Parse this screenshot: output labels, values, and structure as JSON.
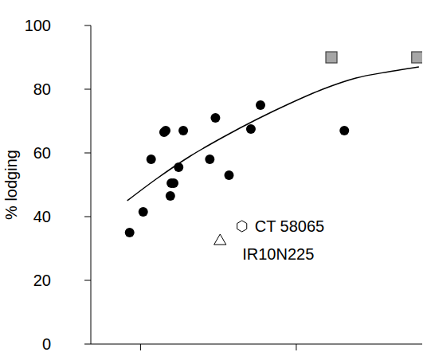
{
  "chart_data": {
    "type": "scatter",
    "y_label": "% lodging",
    "xlim": [
      0,
      100
    ],
    "xticks": [
      15,
      62
    ],
    "ylim": [
      0,
      100
    ],
    "yticks": [
      0,
      20,
      40,
      60,
      80,
      100
    ],
    "tick_labels": "y",
    "series": [
      {
        "type": "line",
        "line_style": "solid",
        "color": "#000000",
        "x": [
          11,
          20,
          30,
          40,
          50,
          60,
          70,
          80,
          90,
          99
        ],
        "values": [
          45,
          52,
          59,
          65,
          70.5,
          75.5,
          80,
          83.5,
          85.5,
          87
        ]
      },
      {
        "type": "scatter",
        "marker": "circle",
        "color": "#000000",
        "x": [
          11.7,
          15.8,
          18.2,
          22.1,
          22.6,
          24.3,
          25,
          24,
          26.5,
          27.9,
          35.9,
          37.6,
          41.7,
          48.3,
          51.2,
          76.5
        ],
        "values": [
          35,
          41.5,
          58,
          66.5,
          67,
          50.5,
          50.5,
          46.5,
          55.5,
          67,
          58,
          71,
          53,
          67.5,
          75,
          67
        ]
      },
      {
        "type": "scatter",
        "marker": "square",
        "color": "#a6a6a6",
        "x": [
          72.6,
          98.5
        ],
        "values": [
          90,
          90
        ]
      },
      {
        "type": "scatter",
        "name": "IR10N225",
        "marker": "triangle",
        "color": "#ffffff",
        "x": [
          39
        ],
        "values": [
          32.5
        ]
      },
      {
        "type": "scatter",
        "name": "CT 58065",
        "marker": "hexagon",
        "color": "#ffffff",
        "x": [
          45.6
        ],
        "values": [
          37
        ]
      }
    ]
  }
}
